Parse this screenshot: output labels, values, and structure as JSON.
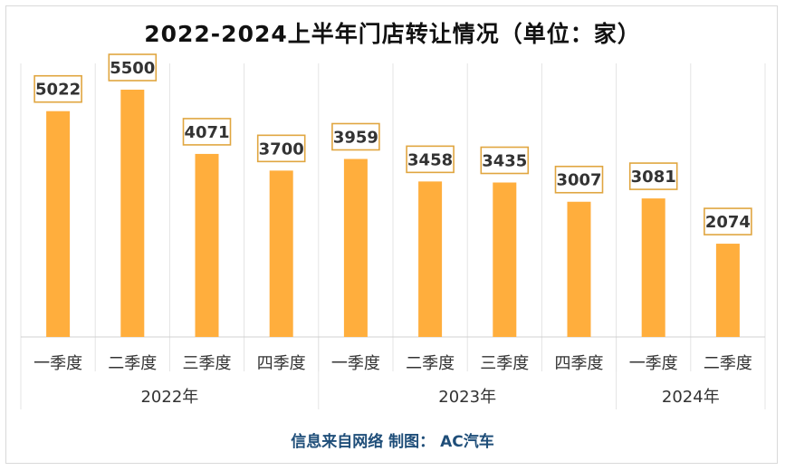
{
  "title": "2022-2024上半年门店转让情况（单位：家）",
  "footer": "信息来自网络  制图：  AC汽车",
  "chart_data": {
    "type": "bar",
    "title": "2022-2024上半年门店转让情况（单位：家）",
    "unit": "家",
    "categories": [
      "一季度",
      "二季度",
      "三季度",
      "四季度",
      "一季度",
      "二季度",
      "三季度",
      "四季度",
      "一季度",
      "二季度"
    ],
    "groups": [
      {
        "label": "2022年",
        "count": 4
      },
      {
        "label": "2023年",
        "count": 4
      },
      {
        "label": "2024年",
        "count": 2
      }
    ],
    "values": [
      5022,
      5500,
      4071,
      3700,
      3959,
      3458,
      3435,
      3007,
      3081,
      2074
    ],
    "ylim": [
      0,
      7000
    ],
    "grid": "vertical",
    "legend": "none",
    "colors": {
      "bar": "#ffae3d",
      "label_border": "#e0a640",
      "footer": "#1f4e79"
    }
  }
}
